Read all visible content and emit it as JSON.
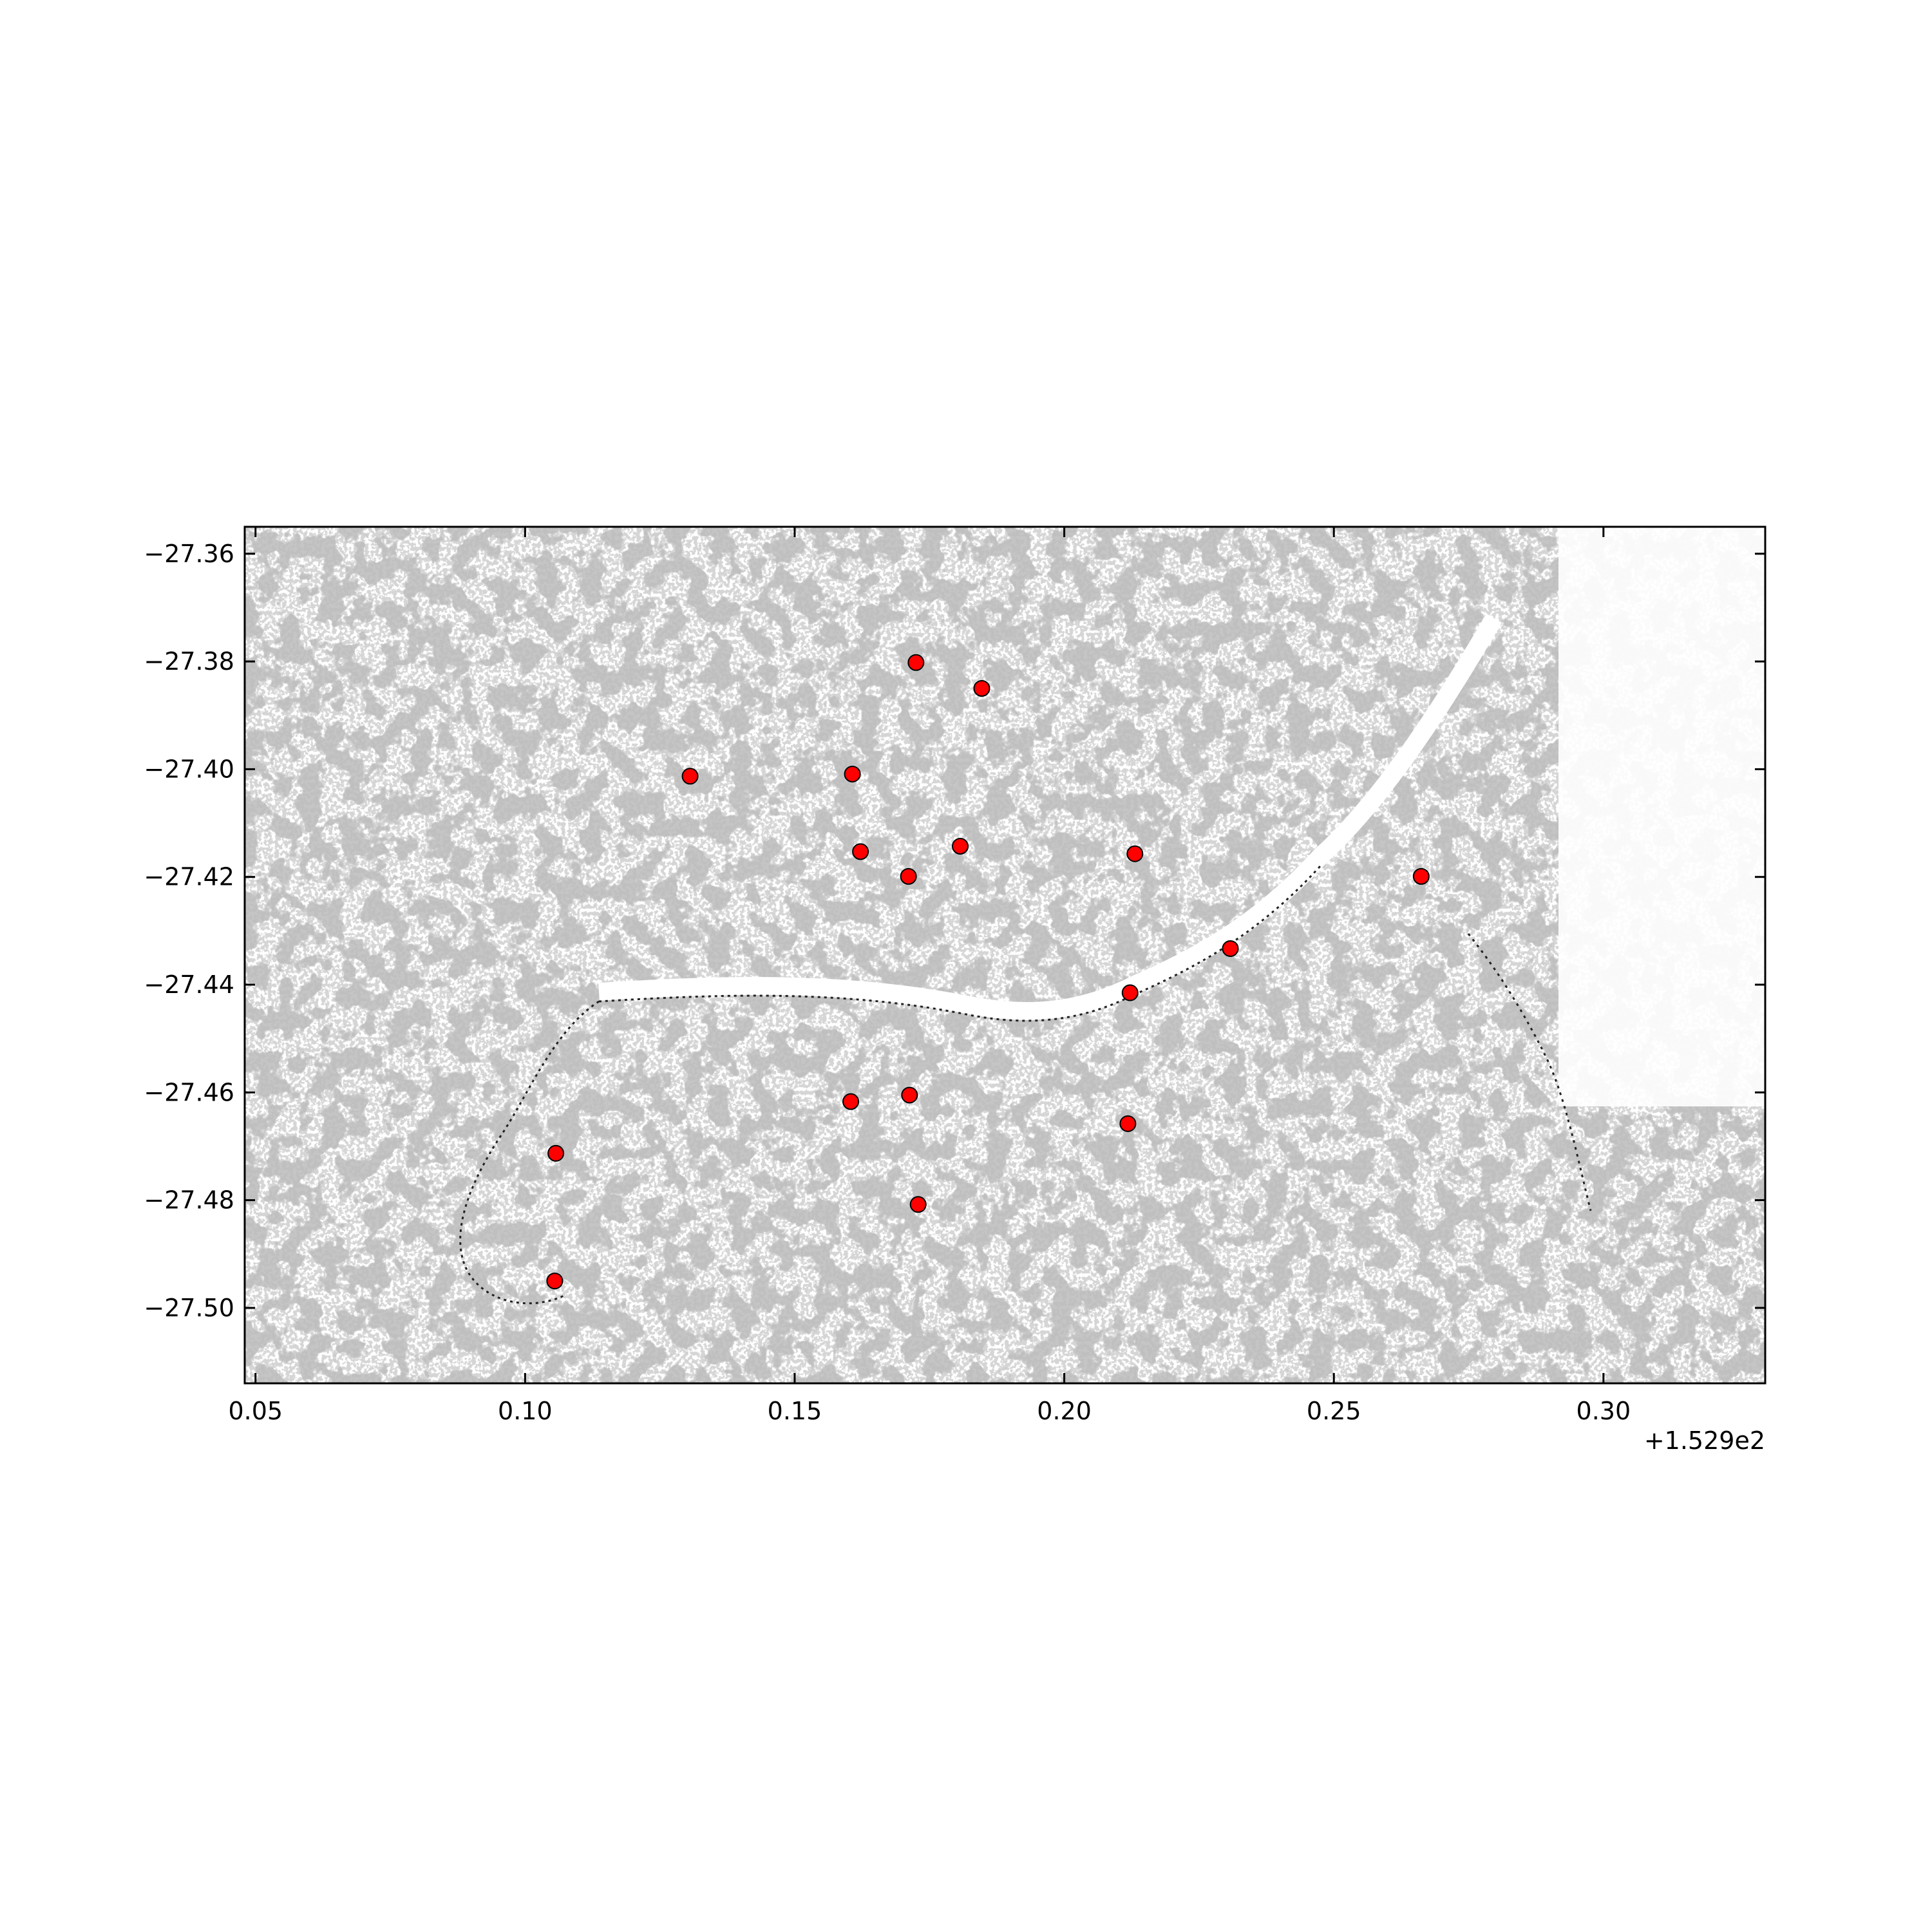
{
  "chart_data": {
    "type": "scatter",
    "title": "",
    "xlabel": "",
    "ylabel": "",
    "x_offset_label": "+1.529e2",
    "x_offset": 152.9,
    "xlim": [
      0.048,
      0.33
    ],
    "ylim": [
      -27.514,
      -27.355
    ],
    "grid": false,
    "background": "grayscale raster map (land cover / urban density)",
    "x_ticks": [
      {
        "value": 0.05,
        "label": "0.05"
      },
      {
        "value": 0.1,
        "label": "0.10"
      },
      {
        "value": 0.15,
        "label": "0.15"
      },
      {
        "value": 0.2,
        "label": "0.20"
      },
      {
        "value": 0.25,
        "label": "0.25"
      },
      {
        "value": 0.3,
        "label": "0.30"
      }
    ],
    "y_ticks": [
      {
        "value": -27.36,
        "label": "−27.36"
      },
      {
        "value": -27.38,
        "label": "−27.38"
      },
      {
        "value": -27.4,
        "label": "−27.40"
      },
      {
        "value": -27.42,
        "label": "−27.42"
      },
      {
        "value": -27.44,
        "label": "−27.44"
      },
      {
        "value": -27.46,
        "label": "−27.46"
      },
      {
        "value": -27.48,
        "label": "−27.48"
      },
      {
        "value": -27.5,
        "label": "−27.50"
      }
    ],
    "marker_color": "#ff0000",
    "marker_edge_color": "#000000",
    "series": [
      {
        "points": [
          {
            "x": 0.1725,
            "y": -27.3802
          },
          {
            "x": 0.1847,
            "y": -27.385
          },
          {
            "x": 0.1306,
            "y": -27.4013
          },
          {
            "x": 0.1607,
            "y": -27.4009
          },
          {
            "x": 0.1622,
            "y": -27.4153
          },
          {
            "x": 0.1807,
            "y": -27.4143
          },
          {
            "x": 0.1711,
            "y": -27.4199
          },
          {
            "x": 0.2131,
            "y": -27.4157
          },
          {
            "x": 0.2662,
            "y": -27.4199
          },
          {
            "x": 0.2308,
            "y": -27.4333
          },
          {
            "x": 0.2122,
            "y": -27.4415
          },
          {
            "x": 0.1604,
            "y": -27.4617
          },
          {
            "x": 0.1713,
            "y": -27.4605
          },
          {
            "x": 0.2118,
            "y": -27.4658
          },
          {
            "x": 0.1057,
            "y": -27.4713
          },
          {
            "x": 0.1729,
            "y": -27.4808
          },
          {
            "x": 0.1055,
            "y": -27.495
          }
        ]
      }
    ]
  }
}
